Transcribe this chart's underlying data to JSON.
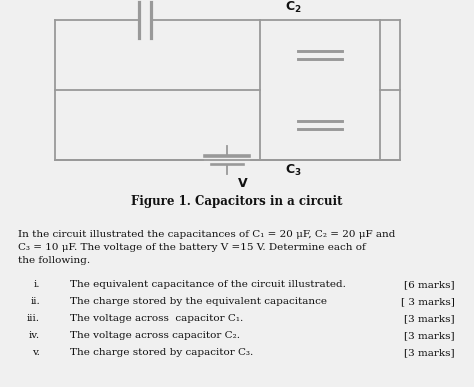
{
  "figure_title": "Figure 1. Capacitors in a circuit",
  "paragraph_line1": "In the circuit illustrated the capacitances of C₁ = 20 μF, C₂ = 20 μF and",
  "paragraph_line2": "C₃ = 10 μF. The voltage of the battery V =15 V. Determine each of",
  "paragraph_line3": "the following.",
  "items": [
    {
      "label": "i.",
      "text": "The equivalent capacitance of the circuit illustrated.",
      "marks": "[6 marks]"
    },
    {
      "label": "ii.",
      "text": "The charge stored by the equivalent capacitance",
      "marks": "[ 3 marks]"
    },
    {
      "label": "iii.",
      "text": "The voltage across  capacitor C₁.",
      "marks": "[3 marks]"
    },
    {
      "label": "iv.",
      "text": "The voltage across capacitor C₂.",
      "marks": "[3 marks]"
    },
    {
      "label": "v.",
      "text": "The charge stored by capacitor C₃.",
      "marks": "[3 marks]"
    }
  ],
  "bg_color": "#f0f0f0",
  "line_color": "#999999",
  "text_color": "#111111"
}
